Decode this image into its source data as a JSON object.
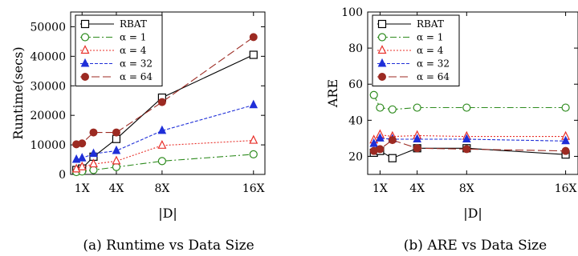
{
  "chart_data": [
    {
      "type": "line",
      "caption": "(a) Runtime vs Data Size",
      "xlabel": "|D|",
      "ylabel": "Runtime(secs)",
      "ylim": [
        0,
        55000
      ],
      "yticks": [
        0,
        10000,
        20000,
        30000,
        40000,
        50000
      ],
      "xlim": [
        0,
        17
      ],
      "xticks": [
        {
          "value": 1,
          "label": "1X"
        },
        {
          "value": 4,
          "label": "4X"
        },
        {
          "value": 8,
          "label": "8X"
        },
        {
          "value": 16,
          "label": "16X"
        }
      ],
      "legend_position": "top-left",
      "grid": false,
      "series": [
        {
          "name": "RBAT",
          "color": "#000000",
          "marker": "square",
          "dash": "",
          "x": [
            0.5,
            1,
            2,
            4,
            8,
            16
          ],
          "values": [
            1500,
            2000,
            6000,
            12000,
            26000,
            40500
          ]
        },
        {
          "name": "α = 1",
          "color": "#2e8b1e",
          "marker": "circle",
          "dash": "8,3,2,3",
          "x": [
            0.5,
            1,
            2,
            4,
            8,
            16
          ],
          "values": [
            800,
            1000,
            1500,
            2500,
            4500,
            6800
          ]
        },
        {
          "name": "α = 4",
          "color": "#e8302a",
          "marker": "triangle-open",
          "dash": "2,2",
          "x": [
            0.5,
            1,
            2,
            4,
            8,
            16
          ],
          "values": [
            1800,
            2500,
            3500,
            4500,
            9800,
            11500
          ]
        },
        {
          "name": "α = 32",
          "color": "#1f2fd8",
          "marker": "triangle-filled",
          "dash": "4,2",
          "x": [
            0.5,
            1,
            2,
            4,
            8,
            16
          ],
          "values": [
            5000,
            5500,
            7000,
            8000,
            14800,
            23500
          ]
        },
        {
          "name": "α = 64",
          "color": "#9c2a22",
          "marker": "circle-filled",
          "dash": "10,4",
          "x": [
            0.5,
            1,
            2,
            4,
            8,
            16
          ],
          "values": [
            10200,
            10500,
            14200,
            14200,
            24500,
            46500
          ]
        }
      ]
    },
    {
      "type": "line",
      "caption": "(b) ARE vs Data Size",
      "xlabel": "|D|",
      "ylabel": "ARE",
      "ylim": [
        10,
        100
      ],
      "yticks": [
        20,
        40,
        60,
        80,
        100
      ],
      "xlim": [
        0,
        17
      ],
      "xticks": [
        {
          "value": 1,
          "label": "1X"
        },
        {
          "value": 4,
          "label": "4X"
        },
        {
          "value": 8,
          "label": "8X"
        },
        {
          "value": 16,
          "label": "16X"
        }
      ],
      "legend_position": "top-left",
      "grid": false,
      "series": [
        {
          "name": "RBAT",
          "color": "#000000",
          "marker": "square",
          "dash": "",
          "x": [
            0.5,
            1,
            2,
            4,
            8,
            16
          ],
          "values": [
            22,
            23,
            19,
            24.5,
            24.5,
            21
          ]
        },
        {
          "name": "α = 1",
          "color": "#2e8b1e",
          "marker": "circle",
          "dash": "8,3,2,3",
          "x": [
            0.5,
            1,
            2,
            4,
            8,
            16
          ],
          "values": [
            54,
            47,
            46,
            47,
            47,
            47
          ]
        },
        {
          "name": "α = 4",
          "color": "#e8302a",
          "marker": "triangle-open",
          "dash": "2,2",
          "x": [
            0.5,
            1,
            2,
            4,
            8,
            16
          ],
          "values": [
            29,
            32,
            31,
            31.5,
            31,
            31
          ]
        },
        {
          "name": "α = 32",
          "color": "#1f2fd8",
          "marker": "triangle-filled",
          "dash": "4,2",
          "x": [
            0.5,
            1,
            2,
            4,
            8,
            16
          ],
          "values": [
            27,
            30,
            29.5,
            29.5,
            29.5,
            28.5
          ]
        },
        {
          "name": "α = 64",
          "color": "#9c2a22",
          "marker": "circle-filled",
          "dash": "10,4",
          "x": [
            0.5,
            1,
            2,
            4,
            8,
            16
          ],
          "values": [
            23,
            24,
            29,
            24.5,
            24,
            23
          ]
        }
      ]
    }
  ]
}
